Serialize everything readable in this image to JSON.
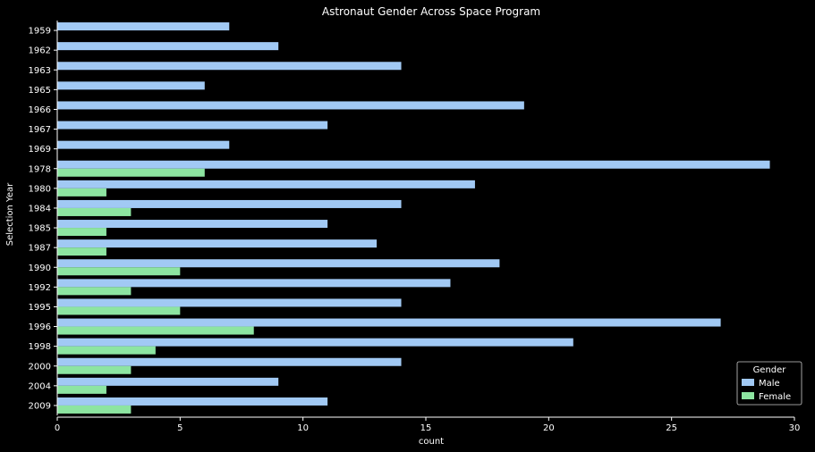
{
  "chart_data": {
    "type": "bar",
    "orientation": "horizontal",
    "title": "Astronaut Gender Across Space Program",
    "xlabel": "count",
    "ylabel": "Selection Year",
    "xlim": [
      0,
      30
    ],
    "xticks": [
      0,
      5,
      10,
      15,
      20,
      25,
      30
    ],
    "categories": [
      "1959",
      "1962",
      "1963",
      "1965",
      "1966",
      "1967",
      "1969",
      "1978",
      "1980",
      "1984",
      "1985",
      "1987",
      "1990",
      "1992",
      "1995",
      "1996",
      "1998",
      "2000",
      "2004",
      "2009"
    ],
    "series": [
      {
        "name": "Male",
        "color": "#a1c9f4",
        "values": [
          7,
          9,
          14,
          6,
          19,
          11,
          7,
          29,
          17,
          14,
          11,
          13,
          18,
          16,
          14,
          27,
          21,
          14,
          9,
          11
        ]
      },
      {
        "name": "Female",
        "color": "#8de5a1",
        "values": [
          0,
          0,
          0,
          0,
          0,
          0,
          0,
          6,
          2,
          3,
          2,
          2,
          5,
          3,
          5,
          8,
          4,
          3,
          2,
          3
        ]
      }
    ],
    "legend": {
      "title": "Gender",
      "placement": "lower-right"
    },
    "grid": false
  }
}
